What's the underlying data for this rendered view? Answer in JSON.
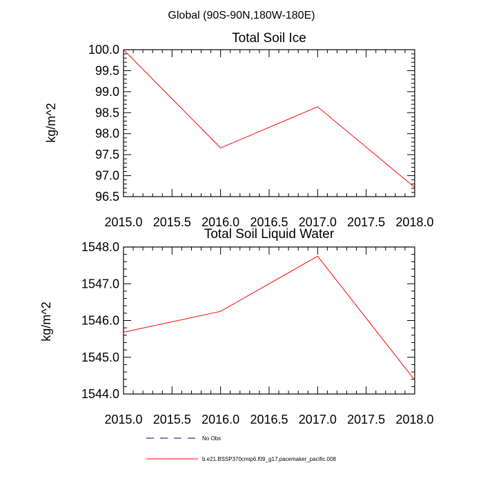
{
  "page_title": "Global (90S-90N,180W-180E)",
  "chart_data": [
    {
      "type": "line",
      "title": "Total Soil Ice",
      "ylabel": "kg/m^2",
      "xlim": [
        2015.0,
        2018.0
      ],
      "ylim": [
        96.5,
        100.0
      ],
      "xticks": [
        "2015.0",
        "2015.5",
        "2016.0",
        "2016.5",
        "2017.0",
        "2017.5",
        "2018.0"
      ],
      "yticks": [
        "96.5",
        "97.0",
        "97.5",
        "98.0",
        "98.5",
        "99.0",
        "99.5",
        "100.0"
      ],
      "series": [
        {
          "name": "b.e21.BSSP370cmip6.f09_g17.pacemaker_pacific.008",
          "color": "#ff0000",
          "x": [
            2015.0,
            2016.0,
            2017.0,
            2018.0
          ],
          "y": [
            100.0,
            97.66,
            98.64,
            96.72
          ]
        }
      ]
    },
    {
      "type": "line",
      "title": "Total Soil Liquid Water",
      "ylabel": "kg/m^2",
      "xlim": [
        2015.0,
        2018.0
      ],
      "ylim": [
        1544.0,
        1548.0
      ],
      "xticks": [
        "2015.0",
        "2015.5",
        "2016.0",
        "2016.5",
        "2017.0",
        "2017.5",
        "2018.0"
      ],
      "yticks": [
        "1544.0",
        "1545.0",
        "1546.0",
        "1547.0",
        "1548.0"
      ],
      "series": [
        {
          "name": "b.e21.BSSP370cmip6.f09_g17.pacemaker_pacific.008",
          "color": "#ff0000",
          "x": [
            2015.0,
            2016.0,
            2017.0,
            2018.0
          ],
          "y": [
            1545.68,
            1546.25,
            1547.75,
            1544.38
          ]
        }
      ]
    }
  ],
  "legend": [
    {
      "label": "No Obs",
      "color": "#00007f",
      "dash": true
    },
    {
      "label": "b.e21.BSSP370cmip6.f09_g17.pacemaker_pacific.008",
      "color": "#ff0000",
      "dash": false
    }
  ]
}
